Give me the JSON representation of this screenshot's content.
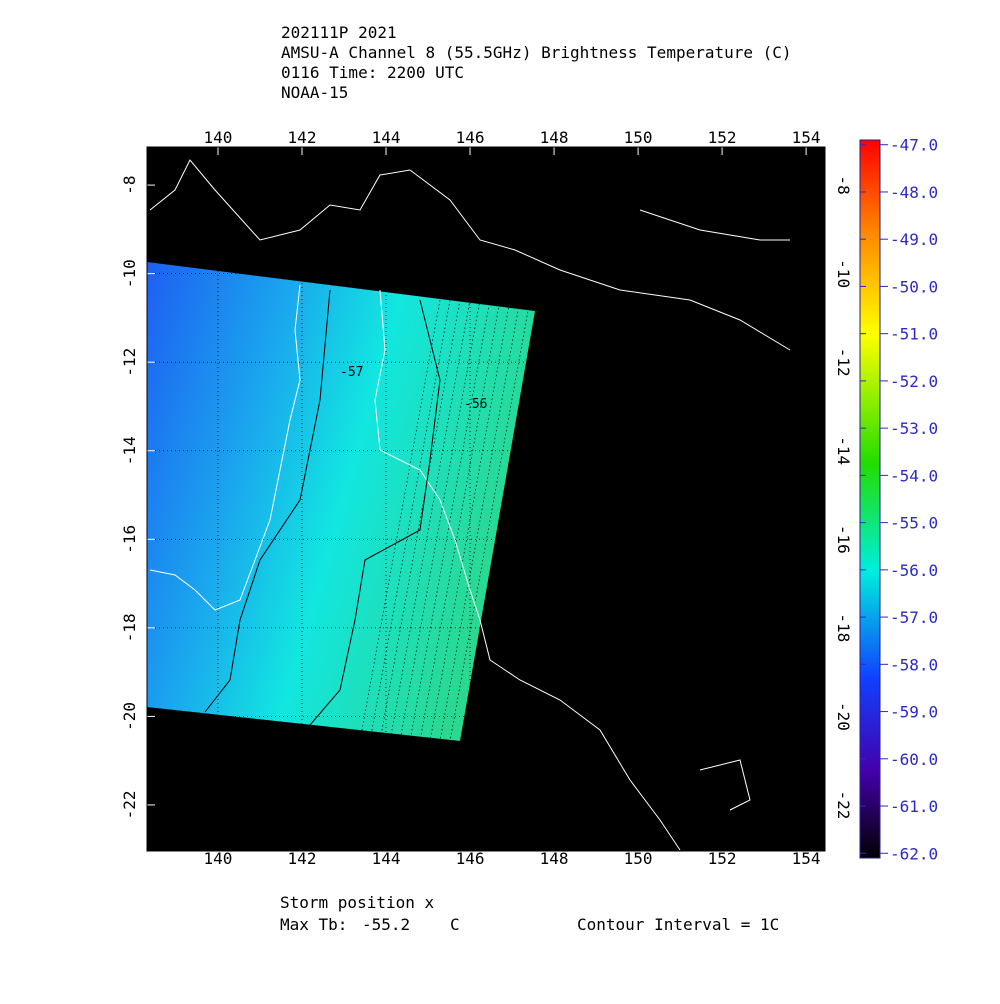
{
  "header": {
    "lines": [
      "202111P 2021",
      "AMSU-A Channel 8 (55.5GHz) Brightness Temperature (C)",
      "0116 Time: 2200 UTC",
      "NOAA-15"
    ]
  },
  "map": {
    "xlim": [
      138.31,
      154.45
    ],
    "ylim": [
      -7.14,
      -23.04
    ],
    "xticks": [
      140,
      142,
      144,
      146,
      148,
      150,
      152,
      154
    ],
    "yticks": [
      -8,
      -10,
      -12,
      -14,
      -16,
      -18,
      -20,
      -22
    ],
    "grid": true,
    "contour_labels": [
      "-57",
      "-56"
    ]
  },
  "colorbar": {
    "lim": [
      -46.9,
      -62.1
    ],
    "ticks": [
      {
        "value": -47,
        "label": "-47.0"
      },
      {
        "value": -48,
        "label": "-48.0"
      },
      {
        "value": -49,
        "label": "-49.0"
      },
      {
        "value": -50,
        "label": "-50.0"
      },
      {
        "value": -51,
        "label": "-51.0"
      },
      {
        "value": -52,
        "label": "-52.0"
      },
      {
        "value": -53,
        "label": "-53.0"
      },
      {
        "value": -54,
        "label": "-54.0"
      },
      {
        "value": -55,
        "label": "-55.0"
      },
      {
        "value": -56,
        "label": "-56.0"
      },
      {
        "value": -57,
        "label": "-57.0"
      },
      {
        "value": -58,
        "label": "-58.0"
      },
      {
        "value": -59,
        "label": "-59.0"
      },
      {
        "value": -60,
        "label": "-60.0"
      },
      {
        "value": -61,
        "label": "-61.0"
      },
      {
        "value": -62,
        "label": "-62.0"
      }
    ]
  },
  "footer": {
    "storm": "Storm position x",
    "max_tb_label": "Max Tb:",
    "max_tb": "-55.2",
    "unit": "C",
    "contour": "Contour Interval = 1C"
  }
}
